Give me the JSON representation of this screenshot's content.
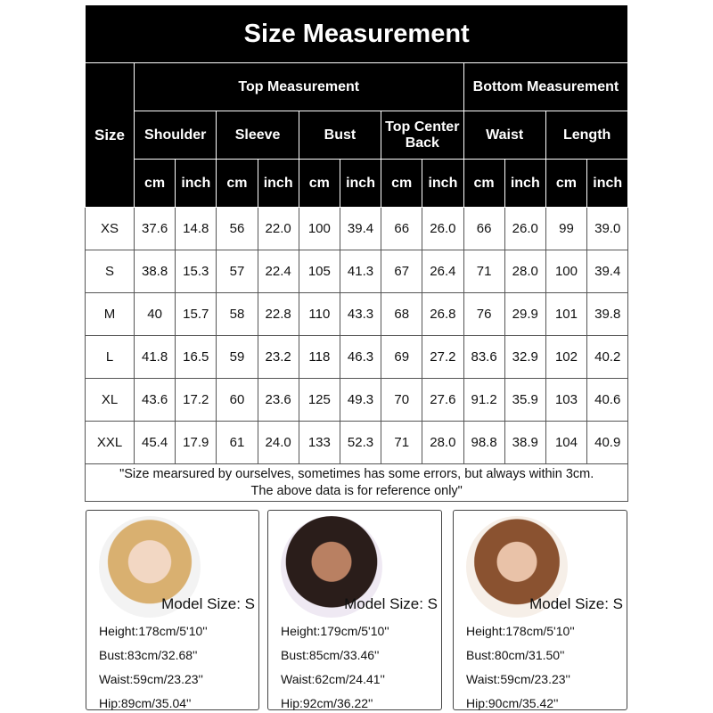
{
  "title": "Size Measurement",
  "header": {
    "size": "Size",
    "groups": [
      "Top Measurement",
      "Bottom Measurement"
    ],
    "columns": [
      "Shoulder",
      "Sleeve",
      "Bust",
      "Top Center Back",
      "Waist",
      "Length"
    ],
    "units": [
      "cm",
      "inch"
    ]
  },
  "rows": [
    [
      "XS",
      "37.6",
      "14.8",
      "56",
      "22.0",
      "100",
      "39.4",
      "66",
      "26.0",
      "66",
      "26.0",
      "99",
      "39.0"
    ],
    [
      "S",
      "38.8",
      "15.3",
      "57",
      "22.4",
      "105",
      "41.3",
      "67",
      "26.4",
      "71",
      "28.0",
      "100",
      "39.4"
    ],
    [
      "M",
      "40",
      "15.7",
      "58",
      "22.8",
      "110",
      "43.3",
      "68",
      "26.8",
      "76",
      "29.9",
      "101",
      "39.8"
    ],
    [
      "L",
      "41.8",
      "16.5",
      "59",
      "23.2",
      "118",
      "46.3",
      "69",
      "27.2",
      "83.6",
      "32.9",
      "102",
      "40.2"
    ],
    [
      "XL",
      "43.6",
      "17.2",
      "60",
      "23.6",
      "125",
      "49.3",
      "70",
      "27.6",
      "91.2",
      "35.9",
      "103",
      "40.6"
    ],
    [
      "XXL",
      "45.4",
      "17.9",
      "61",
      "24.0",
      "133",
      "52.3",
      "71",
      "28.0",
      "98.8",
      "38.9",
      "104",
      "40.9"
    ]
  ],
  "note": [
    "\"Size mearsured by ourselves, sometimes has some errors, but always within 3cm.",
    "The above data is for reference only\""
  ],
  "models": [
    {
      "size": "Model Size: S",
      "details": [
        "Height:178cm/5'10''",
        "Bust:83cm/32.68''",
        "Waist:59cm/23.23''",
        "Hip:89cm/35.04''"
      ]
    },
    {
      "size": "Model Size: S",
      "details": [
        "Height:179cm/5'10''",
        "Bust:85cm/33.46''",
        "Waist:62cm/24.41''",
        "Hip:92cm/36.22''"
      ]
    },
    {
      "size": "Model Size: S",
      "details": [
        "Height:178cm/5'10''",
        "Bust:80cm/31.50''",
        "Waist:59cm/23.23''",
        "Hip:90cm/35.42''"
      ]
    }
  ]
}
